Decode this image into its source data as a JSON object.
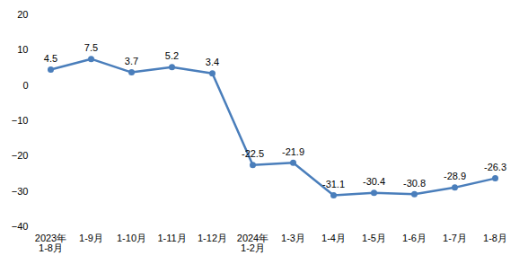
{
  "chart_data": {
    "type": "line",
    "categories": [
      "2023年\n1-8月",
      "1-9月",
      "1-10月",
      "1-11月",
      "1-12月",
      "2024年\n1-2月",
      "1-3月",
      "1-4月",
      "1-5月",
      "1-6月",
      "1-7月",
      "1-8月"
    ],
    "values": [
      4.5,
      7.5,
      3.7,
      5.2,
      3.4,
      -22.5,
      -21.9,
      -31.1,
      -30.4,
      -30.8,
      -28.9,
      -26.3
    ],
    "color": "#4a7ebb",
    "marker": "circle",
    "ylim": [
      -40,
      20
    ],
    "yticks": [
      -40,
      -30,
      -20,
      -10,
      0,
      10,
      20
    ],
    "grid": false,
    "data_labels": true
  }
}
